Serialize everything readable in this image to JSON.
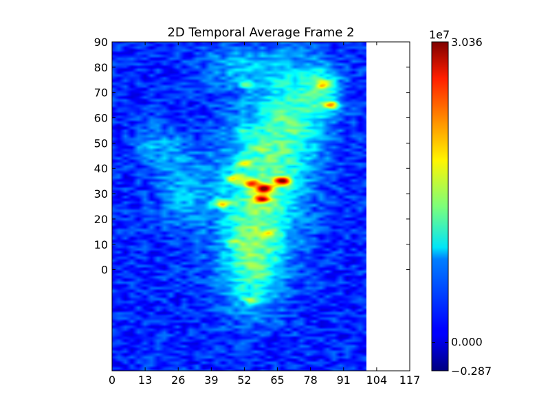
{
  "chart_data": {
    "type": "heatmap",
    "title": "2D Temporal Average Frame 2",
    "xlabel": "",
    "ylabel": "",
    "xlim": [
      0,
      117
    ],
    "ylim": [
      -40,
      90
    ],
    "data_extent_x": [
      0,
      100
    ],
    "x_ticks": [
      "0",
      "13",
      "26",
      "39",
      "52",
      "65",
      "78",
      "91",
      "104",
      "117"
    ],
    "y_ticks": [
      "0",
      "10",
      "20",
      "30",
      "40",
      "50",
      "60",
      "70",
      "80",
      "90"
    ],
    "colormap": "jet",
    "grid": false,
    "colorbar": {
      "multiplier": "1e7",
      "min": -0.287,
      "max": 3.036,
      "tick_labels": [
        "3.036",
        "0.000",
        "−0.287"
      ],
      "tick_values": [
        3.036,
        0.0,
        -0.287
      ]
    },
    "hotspots": [
      {
        "x": 67,
        "y": 35,
        "value": 3.0
      },
      {
        "x": 60,
        "y": 32,
        "value": 2.6
      },
      {
        "x": 59,
        "y": 28,
        "value": 2.4
      },
      {
        "x": 43,
        "y": 26,
        "value": 2.2
      },
      {
        "x": 55,
        "y": 34,
        "value": 2.1
      },
      {
        "x": 48,
        "y": 36,
        "value": 1.9
      },
      {
        "x": 86,
        "y": 65,
        "value": 2.2
      },
      {
        "x": 83,
        "y": 73,
        "value": 1.7
      },
      {
        "x": 52,
        "y": 42,
        "value": 1.7
      },
      {
        "x": 62,
        "y": 14,
        "value": 1.6
      },
      {
        "x": 55,
        "y": -12,
        "value": 1.5
      },
      {
        "x": 53,
        "y": 73,
        "value": 1.4
      },
      {
        "x": 50,
        "y": 55,
        "value": 1.3
      },
      {
        "x": 13,
        "y": 49,
        "value": 1.2
      },
      {
        "x": 48,
        "y": 11,
        "value": 1.3
      },
      {
        "x": 58,
        "y": 48,
        "value": 1.2
      }
    ],
    "regions": [
      {
        "x": 58,
        "y": 30,
        "sx": 16,
        "sy": 30,
        "value": 1.0
      },
      {
        "x": 72,
        "y": 62,
        "sx": 14,
        "sy": 22,
        "value": 0.8
      },
      {
        "x": 55,
        "y": 0,
        "sx": 11,
        "sy": 18,
        "value": 0.7
      },
      {
        "x": 28,
        "y": 30,
        "sx": 10,
        "sy": 14,
        "value": 0.45
      },
      {
        "x": 83,
        "y": 72,
        "sx": 7,
        "sy": 9,
        "value": 0.6
      },
      {
        "x": 20,
        "y": 48,
        "sx": 10,
        "sy": 10,
        "value": 0.35
      },
      {
        "x": 50,
        "y": 80,
        "sx": 14,
        "sy": 8,
        "value": 0.45
      }
    ],
    "background_value": 0.25
  }
}
